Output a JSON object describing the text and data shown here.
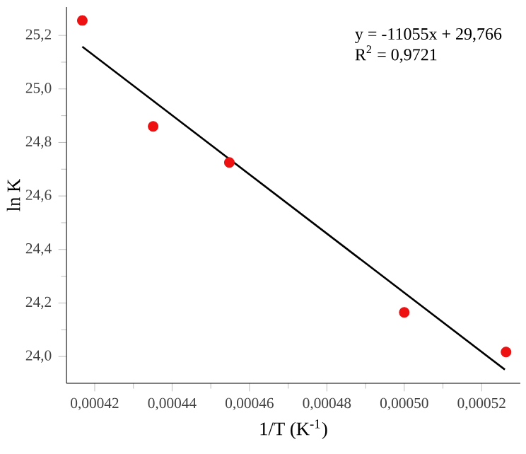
{
  "chart_data": {
    "type": "scatter",
    "xlabel": "1/T (K$^{-1}$)",
    "ylabel": "ln K",
    "xlim": [
      0.0004127,
      0.00053
    ],
    "ylim": [
      23.9,
      25.306
    ],
    "xticks": [
      {
        "value": 0.00042,
        "label": "0,00042"
      },
      {
        "value": 0.00044,
        "label": "0,00044"
      },
      {
        "value": 0.00046,
        "label": "0,00046"
      },
      {
        "value": 0.00048,
        "label": "0,00048"
      },
      {
        "value": 0.0005,
        "label": "0,00050"
      },
      {
        "value": 0.00052,
        "label": "0,00052"
      }
    ],
    "yticks": [
      {
        "value": 24.0,
        "label": "24,0"
      },
      {
        "value": 24.2,
        "label": "24,2"
      },
      {
        "value": 24.4,
        "label": "24,4"
      },
      {
        "value": 24.6,
        "label": "24,6"
      },
      {
        "value": 24.8,
        "label": "24,8"
      },
      {
        "value": 25.0,
        "label": "25,0"
      },
      {
        "value": 25.2,
        "label": "25,2"
      }
    ],
    "grid": false,
    "series": [
      {
        "marker": "circle",
        "color": "#ee1111",
        "x": [
          0.0004168,
          0.0004351,
          0.0004548,
          0.0005,
          0.0005263
        ],
        "values": [
          25.256,
          24.86,
          24.725,
          24.165,
          24.017
        ]
      },
      {
        "type": "line",
        "color": "#000000",
        "marker": "none",
        "x": [
          0.0004168,
          0.000526
        ],
        "values": [
          25.158,
          23.951
        ]
      }
    ],
    "annotations": [
      "y = -11055x + 29,766",
      "R$^{2}$ = 0,9721"
    ]
  }
}
